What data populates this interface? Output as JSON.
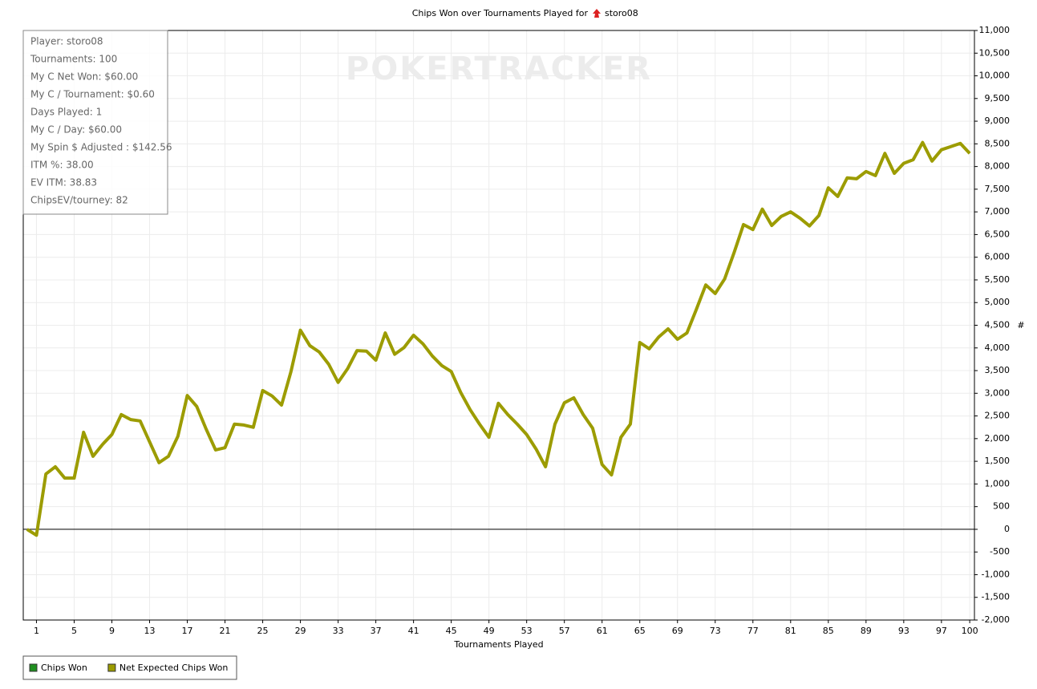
{
  "chart_data": {
    "type": "line",
    "title": "Chips Won over Tournaments Played for",
    "player": "storo08",
    "watermark": "POKERTRACKER",
    "x_label": "Tournaments Played",
    "y_label": "#",
    "info_box": [
      "Player: storo08",
      "Tournaments: 100",
      "My C Net Won: $60.00",
      "My C / Tournament: $0.60",
      "Days Played: 1",
      "My C / Day: $60.00",
      "My Spin $ Adjusted : $142.56",
      "ITM %: 38.00",
      "EV ITM: 38.83",
      "ChipsEV/tourney: 82"
    ],
    "legend": [
      {
        "name": "Chips Won",
        "color": "#1f8f1f"
      },
      {
        "name": "Net Expected Chips Won",
        "color": "#9c9c00"
      }
    ],
    "x": [
      0,
      1,
      2,
      3,
      4,
      5,
      6,
      7,
      8,
      9,
      10,
      11,
      12,
      13,
      14,
      15,
      16,
      17,
      18,
      19,
      20,
      21,
      22,
      23,
      24,
      25,
      26,
      27,
      28,
      29,
      30,
      31,
      32,
      33,
      34,
      35,
      36,
      37,
      38,
      39,
      40,
      41,
      42,
      43,
      44,
      45,
      46,
      47,
      48,
      49,
      50,
      51,
      52,
      53,
      54,
      55,
      56,
      57,
      58,
      59,
      60,
      61,
      62,
      63,
      64,
      65,
      66,
      67,
      68,
      69,
      70,
      71,
      72,
      73,
      74,
      75,
      76,
      77,
      78,
      79,
      80,
      81,
      82,
      83,
      84,
      85,
      86,
      87,
      88,
      89,
      90,
      91,
      92,
      93,
      94,
      95,
      96,
      97,
      98,
      99,
      100
    ],
    "series": [
      {
        "name": "Net Expected Chips Won",
        "color": "#9c9c00",
        "values": [
          0,
          -130,
          1220,
          1380,
          1130,
          1130,
          2140,
          1610,
          1870,
          2090,
          2530,
          2420,
          2390,
          1930,
          1470,
          1610,
          2050,
          2950,
          2710,
          2210,
          1750,
          1800,
          2320,
          2300,
          2250,
          3060,
          2940,
          2740,
          3480,
          4390,
          4050,
          3910,
          3640,
          3240,
          3540,
          3940,
          3930,
          3730,
          4330,
          3860,
          4010,
          4280,
          4090,
          3820,
          3610,
          3480,
          3020,
          2640,
          2320,
          2030,
          2780,
          2530,
          2320,
          2090,
          1770,
          1380,
          2320,
          2790,
          2900,
          2530,
          2230,
          1430,
          1200,
          2030,
          2320,
          4120,
          3980,
          4240,
          4420,
          4190,
          4330,
          4850,
          5390,
          5200,
          5520,
          6100,
          6720,
          6610,
          7060,
          6700,
          6900,
          7000,
          6860,
          6690,
          6920,
          7530,
          7340,
          7750,
          7730,
          7890,
          7800,
          8290,
          7850,
          8070,
          8150,
          8530,
          8120,
          8370,
          8440,
          8510,
          8290
        ]
      }
    ],
    "xlim": [
      -0.4,
      100.5
    ],
    "xticks": [
      1,
      5,
      9,
      13,
      17,
      21,
      25,
      29,
      33,
      37,
      41,
      45,
      49,
      53,
      57,
      61,
      65,
      69,
      73,
      77,
      81,
      85,
      89,
      93,
      97,
      100
    ],
    "ylim": [
      -2000,
      11000
    ],
    "yticks": [
      {
        "value": -2000,
        "label": "-2,000"
      },
      {
        "value": -1500,
        "label": "-1,500"
      },
      {
        "value": -1000,
        "label": "-1,000"
      },
      -500,
      0,
      500,
      {
        "value": 1000,
        "label": "1,000"
      },
      {
        "value": 1500,
        "label": "1,500"
      },
      {
        "value": 2000,
        "label": "2,000"
      },
      {
        "value": 2500,
        "label": "2,500"
      },
      {
        "value": 3000,
        "label": "3,000"
      },
      {
        "value": 3500,
        "label": "3,500"
      },
      {
        "value": 4000,
        "label": "4,000"
      },
      {
        "value": 4500,
        "label": "4,500"
      },
      {
        "value": 5000,
        "label": "5,000"
      },
      {
        "value": 5500,
        "label": "5,500"
      },
      {
        "value": 6000,
        "label": "6,000"
      },
      {
        "value": 6500,
        "label": "6,500"
      },
      {
        "value": 7000,
        "label": "7,000"
      },
      {
        "value": 7500,
        "label": "7,500"
      },
      {
        "value": 8000,
        "label": "8,000"
      },
      {
        "value": 8500,
        "label": "8,500"
      },
      {
        "value": 9000,
        "label": "9,000"
      },
      {
        "value": 9500,
        "label": "9,500"
      },
      {
        "value": 10000,
        "label": "10,000"
      },
      {
        "value": 10500,
        "label": "10,500"
      },
      {
        "value": 11000,
        "label": "11,000"
      }
    ],
    "grid": true
  }
}
